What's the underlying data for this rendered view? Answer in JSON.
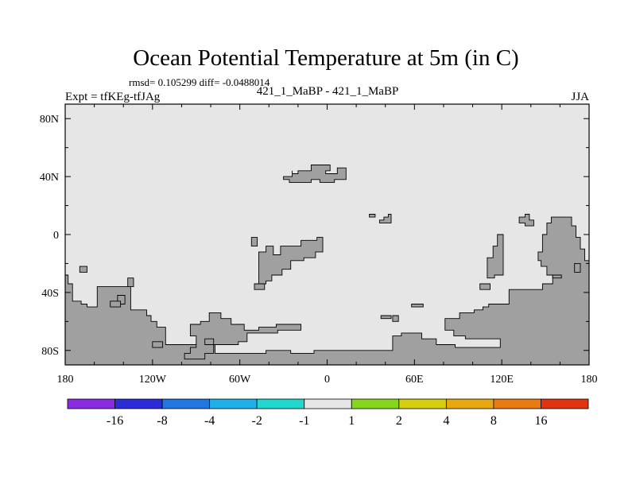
{
  "chart_data": {
    "type": "heatmap",
    "title": "Ocean Potential Temperature at 5m (in C)",
    "stats_text": "rmsd= 0.105299 diff= -0.0488014",
    "left_label": "Expt = tfKEg-tfJAg",
    "center_label": "421_1_MaBP - 421_1_MaBP",
    "right_label": "JJA",
    "x_ticks": [
      "180",
      "120W",
      "60W",
      "0",
      "60E",
      "120E",
      "180"
    ],
    "x_tick_values": [
      -180,
      -120,
      -60,
      0,
      60,
      120,
      180
    ],
    "y_ticks": [
      "80N",
      "40N",
      "0",
      "40S",
      "80S"
    ],
    "y_tick_values": [
      80,
      40,
      0,
      -40,
      -80
    ],
    "xlim": [
      -180,
      180
    ],
    "ylim": [
      -90,
      90
    ],
    "grid": false,
    "field_value_range": [
      -1,
      1
    ],
    "colorbar": {
      "placement": "bottom",
      "colors": [
        "#8a2be2",
        "#2b2bd8",
        "#1f78e0",
        "#1fb0e8",
        "#20d8d0",
        "#e6e6e6",
        "#84d81c",
        "#d6cf10",
        "#e8a810",
        "#e87c10",
        "#e03410"
      ],
      "labels": [
        "-16",
        "-8",
        "-4",
        "-2",
        "-1",
        "1",
        "2",
        "4",
        "8",
        "16"
      ]
    },
    "land_color": "#a0a0a0",
    "ocean_color": "#e6e6e6",
    "land_masks": [
      [
        [
          -180,
          -28
        ],
        [
          -178,
          -28
        ],
        [
          -178,
          -34
        ],
        [
          -175,
          -34
        ],
        [
          -175,
          -46
        ],
        [
          -169,
          -46
        ],
        [
          -169,
          -48
        ],
        [
          -165,
          -48
        ],
        [
          -165,
          -50
        ],
        [
          -158,
          -50
        ],
        [
          -158,
          -36
        ],
        [
          -135,
          -36
        ],
        [
          -135,
          -52
        ],
        [
          -124,
          -52
        ],
        [
          -124,
          -56
        ],
        [
          -121,
          -56
        ],
        [
          -121,
          -60
        ],
        [
          -117,
          -60
        ],
        [
          -117,
          -64
        ],
        [
          -111,
          -64
        ],
        [
          -111,
          -76
        ],
        [
          -77,
          -76
        ],
        [
          -77,
          -82
        ],
        [
          -42,
          -82
        ],
        [
          -42,
          -80
        ],
        [
          -25,
          -80
        ],
        [
          -25,
          -82
        ],
        [
          -9,
          -82
        ],
        [
          -9,
          -80
        ],
        [
          25,
          -80
        ],
        [
          45,
          -80
        ],
        [
          45,
          -70
        ],
        [
          51,
          -70
        ],
        [
          51,
          -68
        ],
        [
          65,
          -68
        ],
        [
          65,
          -72
        ],
        [
          75,
          -72
        ],
        [
          75,
          -76
        ],
        [
          88,
          -76
        ],
        [
          88,
          -78
        ],
        [
          119,
          -78
        ],
        [
          119,
          -72
        ],
        [
          95,
          -72
        ],
        [
          95,
          -70
        ],
        [
          87,
          -70
        ],
        [
          87,
          -66
        ],
        [
          81,
          -66
        ],
        [
          81,
          -58
        ],
        [
          91,
          -58
        ],
        [
          91,
          -54
        ],
        [
          101,
          -54
        ],
        [
          101,
          -52
        ],
        [
          107,
          -52
        ],
        [
          107,
          -50
        ],
        [
          111,
          -50
        ],
        [
          111,
          -48
        ],
        [
          125,
          -48
        ],
        [
          125,
          -38
        ],
        [
          148,
          -38
        ],
        [
          148,
          -34
        ],
        [
          155,
          -34
        ],
        [
          155,
          -28
        ],
        [
          151,
          -28
        ],
        [
          151,
          -22
        ],
        [
          147,
          -22
        ],
        [
          147,
          -18
        ],
        [
          145,
          -18
        ],
        [
          145,
          -12
        ],
        [
          148,
          -12
        ],
        [
          148,
          0
        ],
        [
          151,
          0
        ],
        [
          151,
          8
        ],
        [
          154,
          8
        ],
        [
          154,
          12
        ],
        [
          168,
          12
        ],
        [
          168,
          6
        ],
        [
          171,
          6
        ],
        [
          171,
          -2
        ],
        [
          174,
          -2
        ],
        [
          174,
          -10
        ],
        [
          177,
          -10
        ],
        [
          177,
          -18
        ],
        [
          180,
          -18
        ],
        [
          180,
          -90
        ],
        [
          -180,
          -90
        ]
      ],
      [
        [
          -98,
          -86
        ],
        [
          -98,
          -82
        ],
        [
          -94,
          -82
        ],
        [
          -94,
          -78
        ],
        [
          -90,
          -78
        ],
        [
          -90,
          -70
        ],
        [
          -94,
          -70
        ],
        [
          -94,
          -62
        ],
        [
          -87,
          -62
        ],
        [
          -87,
          -60
        ],
        [
          -81,
          -60
        ],
        [
          -81,
          -54
        ],
        [
          -73,
          -54
        ],
        [
          -73,
          -58
        ],
        [
          -66,
          -58
        ],
        [
          -66,
          -62
        ],
        [
          -57,
          -62
        ],
        [
          -57,
          -66
        ],
        [
          -47,
          -66
        ],
        [
          -47,
          -64
        ],
        [
          -35,
          -64
        ],
        [
          -35,
          -62
        ],
        [
          -18,
          -62
        ],
        [
          -18,
          -66
        ],
        [
          -34,
          -66
        ],
        [
          -34,
          -68
        ],
        [
          -55,
          -68
        ],
        [
          -55,
          -74
        ],
        [
          -61,
          -74
        ],
        [
          -61,
          -76
        ],
        [
          -78,
          -76
        ],
        [
          -78,
          -82
        ],
        [
          -84,
          -82
        ],
        [
          -84,
          -86
        ]
      ],
      [
        [
          -47,
          -26
        ],
        [
          -47,
          -12
        ],
        [
          -42,
          -12
        ],
        [
          -42,
          -8
        ],
        [
          -37,
          -8
        ],
        [
          -37,
          -14
        ],
        [
          -32,
          -14
        ],
        [
          -32,
          -8
        ],
        [
          -18,
          -8
        ],
        [
          -18,
          -4
        ],
        [
          -7,
          -4
        ],
        [
          -7,
          -2
        ],
        [
          -3,
          -2
        ],
        [
          -3,
          -12
        ],
        [
          -8,
          -12
        ],
        [
          -8,
          -16
        ],
        [
          -16,
          -16
        ],
        [
          -16,
          -18
        ],
        [
          -25,
          -18
        ],
        [
          -25,
          -24
        ],
        [
          -31,
          -24
        ],
        [
          -31,
          -28
        ],
        [
          -38,
          -28
        ],
        [
          -38,
          -32
        ],
        [
          -42,
          -32
        ],
        [
          -42,
          -34
        ],
        [
          -47,
          -34
        ],
        [
          -47,
          -30
        ]
      ],
      [
        [
          -24,
          44
        ],
        [
          -24,
          42
        ],
        [
          -20,
          42
        ],
        [
          -20,
          44
        ],
        [
          -11,
          44
        ],
        [
          -11,
          48
        ],
        [
          2,
          48
        ],
        [
          2,
          44
        ],
        [
          -1,
          44
        ],
        [
          -1,
          42
        ],
        [
          7,
          42
        ],
        [
          7,
          46
        ],
        [
          13,
          46
        ],
        [
          13,
          38
        ],
        [
          5,
          38
        ],
        [
          5,
          36
        ],
        [
          -5,
          36
        ],
        [
          -5,
          38
        ],
        [
          -11,
          38
        ],
        [
          -11,
          36
        ],
        [
          -26,
          36
        ],
        [
          -26,
          38
        ],
        [
          -30,
          38
        ],
        [
          -30,
          40
        ],
        [
          -24,
          40
        ]
      ],
      [
        [
          -50,
          -34
        ],
        [
          -43,
          -34
        ],
        [
          -43,
          -38
        ],
        [
          -50,
          -38
        ]
      ],
      [
        [
          -52,
          -2
        ],
        [
          -48,
          -2
        ],
        [
          -48,
          -8
        ],
        [
          -52,
          -8
        ]
      ],
      [
        [
          -137,
          -30
        ],
        [
          -133,
          -30
        ],
        [
          -133,
          -36
        ],
        [
          -137,
          -36
        ]
      ],
      [
        [
          -144,
          -42
        ],
        [
          -139,
          -42
        ],
        [
          -139,
          -48
        ],
        [
          -144,
          -48
        ]
      ],
      [
        [
          -142,
          -46
        ],
        [
          -149,
          -46
        ],
        [
          -149,
          -50
        ],
        [
          -142,
          -50
        ]
      ],
      [
        [
          -170,
          -22
        ],
        [
          -165,
          -22
        ],
        [
          -165,
          -26
        ],
        [
          -170,
          -26
        ]
      ],
      [
        [
          -84,
          -76
        ],
        [
          -84,
          -72
        ],
        [
          -78,
          -72
        ],
        [
          -78,
          -76
        ]
      ],
      [
        [
          -120,
          -74
        ],
        [
          -113,
          -74
        ],
        [
          -113,
          -78
        ],
        [
          -120,
          -78
        ]
      ],
      [
        [
          29,
          14
        ],
        [
          33,
          14
        ],
        [
          33,
          12
        ],
        [
          29,
          12
        ]
      ],
      [
        [
          36,
          10
        ],
        [
          39,
          10
        ],
        [
          39,
          12
        ],
        [
          42,
          12
        ],
        [
          42,
          14
        ],
        [
          44,
          14
        ],
        [
          44,
          8
        ],
        [
          36,
          8
        ]
      ],
      [
        [
          37,
          -56
        ],
        [
          44,
          -56
        ],
        [
          44,
          -58
        ],
        [
          37,
          -58
        ]
      ],
      [
        [
          45,
          -56
        ],
        [
          49,
          -56
        ],
        [
          49,
          -60
        ],
        [
          45,
          -60
        ]
      ],
      [
        [
          58,
          -48
        ],
        [
          66,
          -48
        ],
        [
          66,
          -50
        ],
        [
          58,
          -50
        ]
      ],
      [
        [
          105,
          -34
        ],
        [
          112,
          -34
        ],
        [
          112,
          -38
        ],
        [
          105,
          -38
        ]
      ],
      [
        [
          110,
          -30
        ],
        [
          110,
          -16
        ],
        [
          114,
          -16
        ],
        [
          114,
          -8
        ],
        [
          117,
          -8
        ],
        [
          117,
          0
        ],
        [
          121,
          0
        ],
        [
          121,
          -28
        ],
        [
          115,
          -28
        ],
        [
          115,
          -30
        ]
      ],
      [
        [
          132,
          12
        ],
        [
          136,
          12
        ],
        [
          136,
          14
        ],
        [
          139,
          14
        ],
        [
          139,
          10
        ],
        [
          142,
          10
        ],
        [
          142,
          6
        ],
        [
          136,
          6
        ],
        [
          136,
          8
        ],
        [
          132,
          8
        ]
      ],
      [
        [
          155,
          -28
        ],
        [
          161,
          -28
        ],
        [
          161,
          -30
        ],
        [
          155,
          -30
        ]
      ],
      [
        [
          170,
          -20
        ],
        [
          174,
          -20
        ],
        [
          174,
          -26
        ],
        [
          170,
          -26
        ]
      ]
    ]
  }
}
